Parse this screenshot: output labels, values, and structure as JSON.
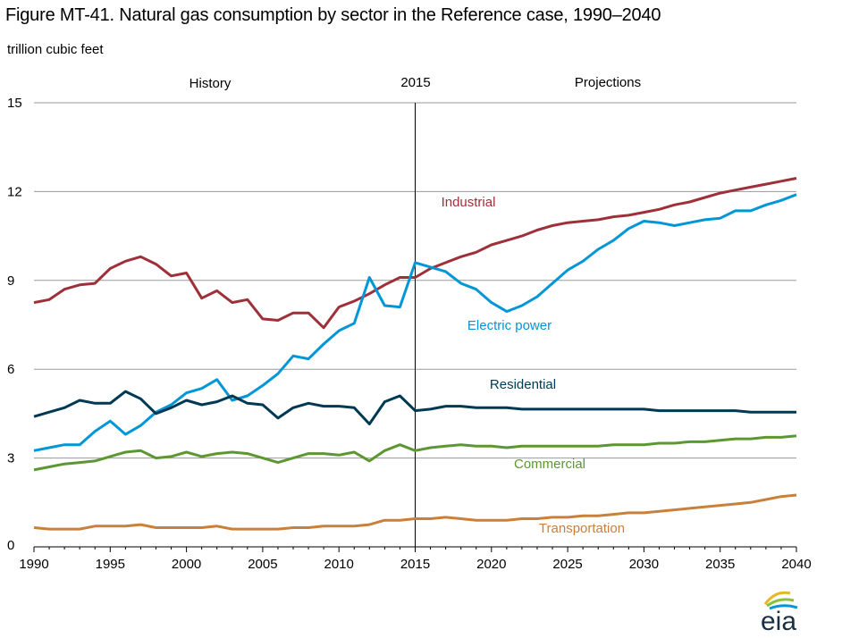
{
  "chart_data": {
    "type": "line",
    "title": "Figure MT-41. Natural gas consumption by sector in the Reference case, 1990–2040",
    "ylabel": "trillion cubic feet",
    "xlabel": "",
    "xlim": [
      1990,
      2040
    ],
    "ylim": [
      0,
      15
    ],
    "yticks": [
      0,
      3,
      6,
      9,
      12,
      15
    ],
    "xticks": [
      1990,
      1995,
      2000,
      2005,
      2010,
      2015,
      2020,
      2025,
      2030,
      2035,
      2040
    ],
    "grid": true,
    "annotations": {
      "history": "History",
      "divider": "2015",
      "projections": "Projections"
    },
    "divider_year": 2015,
    "x": [
      1990,
      1991,
      1992,
      1993,
      1994,
      1995,
      1996,
      1997,
      1998,
      1999,
      2000,
      2001,
      2002,
      2003,
      2004,
      2005,
      2006,
      2007,
      2008,
      2009,
      2010,
      2011,
      2012,
      2013,
      2014,
      2015,
      2016,
      2017,
      2018,
      2019,
      2020,
      2021,
      2022,
      2023,
      2024,
      2025,
      2026,
      2027,
      2028,
      2029,
      2030,
      2031,
      2032,
      2033,
      2034,
      2035,
      2036,
      2037,
      2038,
      2039,
      2040
    ],
    "series": [
      {
        "name": "Industrial",
        "color": "#9e3039",
        "values": [
          8.25,
          8.35,
          8.7,
          8.85,
          8.9,
          9.4,
          9.65,
          9.8,
          9.55,
          9.15,
          9.25,
          8.4,
          8.65,
          8.25,
          8.35,
          7.7,
          7.65,
          7.9,
          7.9,
          7.4,
          8.1,
          8.3,
          8.55,
          8.85,
          9.1,
          9.1,
          9.4,
          9.6,
          9.8,
          9.95,
          10.2,
          10.35,
          10.5,
          10.7,
          10.85,
          10.95,
          11.0,
          11.05,
          11.15,
          11.2,
          11.3,
          11.4,
          11.55,
          11.65,
          11.8,
          11.95,
          12.05,
          12.15,
          12.25,
          12.35,
          12.45
        ]
      },
      {
        "name": "Electric power",
        "color": "#0096d7",
        "values": [
          3.25,
          3.35,
          3.45,
          3.45,
          3.9,
          4.25,
          3.8,
          4.1,
          4.55,
          4.8,
          5.2,
          5.35,
          5.65,
          4.95,
          5.1,
          5.45,
          5.85,
          6.45,
          6.35,
          6.85,
          7.3,
          7.55,
          9.1,
          8.15,
          8.1,
          9.6,
          9.45,
          9.3,
          8.9,
          8.7,
          8.25,
          7.95,
          8.15,
          8.45,
          8.9,
          9.35,
          9.65,
          10.05,
          10.35,
          10.75,
          11.0,
          10.95,
          10.85,
          10.95,
          11.05,
          11.1,
          11.35,
          11.35,
          11.55,
          11.7,
          11.9
        ]
      },
      {
        "name": "Residential",
        "color": "#003953",
        "values": [
          4.4,
          4.55,
          4.7,
          4.95,
          4.85,
          4.85,
          5.25,
          5.0,
          4.5,
          4.7,
          4.95,
          4.8,
          4.9,
          5.1,
          4.85,
          4.8,
          4.35,
          4.7,
          4.85,
          4.75,
          4.75,
          4.7,
          4.15,
          4.9,
          5.1,
          4.6,
          4.65,
          4.75,
          4.75,
          4.7,
          4.7,
          4.7,
          4.65,
          4.65,
          4.65,
          4.65,
          4.65,
          4.65,
          4.65,
          4.65,
          4.65,
          4.6,
          4.6,
          4.6,
          4.6,
          4.6,
          4.6,
          4.55,
          4.55,
          4.55,
          4.55
        ]
      },
      {
        "name": "Commercial",
        "color": "#5d9732",
        "values": [
          2.6,
          2.7,
          2.8,
          2.85,
          2.9,
          3.05,
          3.2,
          3.25,
          3.0,
          3.05,
          3.2,
          3.05,
          3.15,
          3.2,
          3.15,
          3.0,
          2.85,
          3.0,
          3.15,
          3.15,
          3.1,
          3.2,
          2.9,
          3.25,
          3.45,
          3.25,
          3.35,
          3.4,
          3.45,
          3.4,
          3.4,
          3.35,
          3.4,
          3.4,
          3.4,
          3.4,
          3.4,
          3.4,
          3.45,
          3.45,
          3.45,
          3.5,
          3.5,
          3.55,
          3.55,
          3.6,
          3.65,
          3.65,
          3.7,
          3.7,
          3.75
        ]
      },
      {
        "name": "Transportation",
        "color": "#c9803b",
        "values": [
          0.65,
          0.6,
          0.6,
          0.6,
          0.7,
          0.7,
          0.7,
          0.75,
          0.65,
          0.65,
          0.65,
          0.65,
          0.7,
          0.6,
          0.6,
          0.6,
          0.6,
          0.65,
          0.65,
          0.7,
          0.7,
          0.7,
          0.75,
          0.9,
          0.9,
          0.95,
          0.95,
          1.0,
          0.95,
          0.9,
          0.9,
          0.9,
          0.95,
          0.95,
          1.0,
          1.0,
          1.05,
          1.05,
          1.1,
          1.15,
          1.15,
          1.2,
          1.25,
          1.3,
          1.35,
          1.4,
          1.45,
          1.5,
          1.6,
          1.7,
          1.75
        ]
      }
    ],
    "series_labels": [
      "Industrial",
      "Electric power",
      "Residential",
      "Commercial",
      "Transportation"
    ]
  },
  "logo": {
    "text": "eia"
  }
}
